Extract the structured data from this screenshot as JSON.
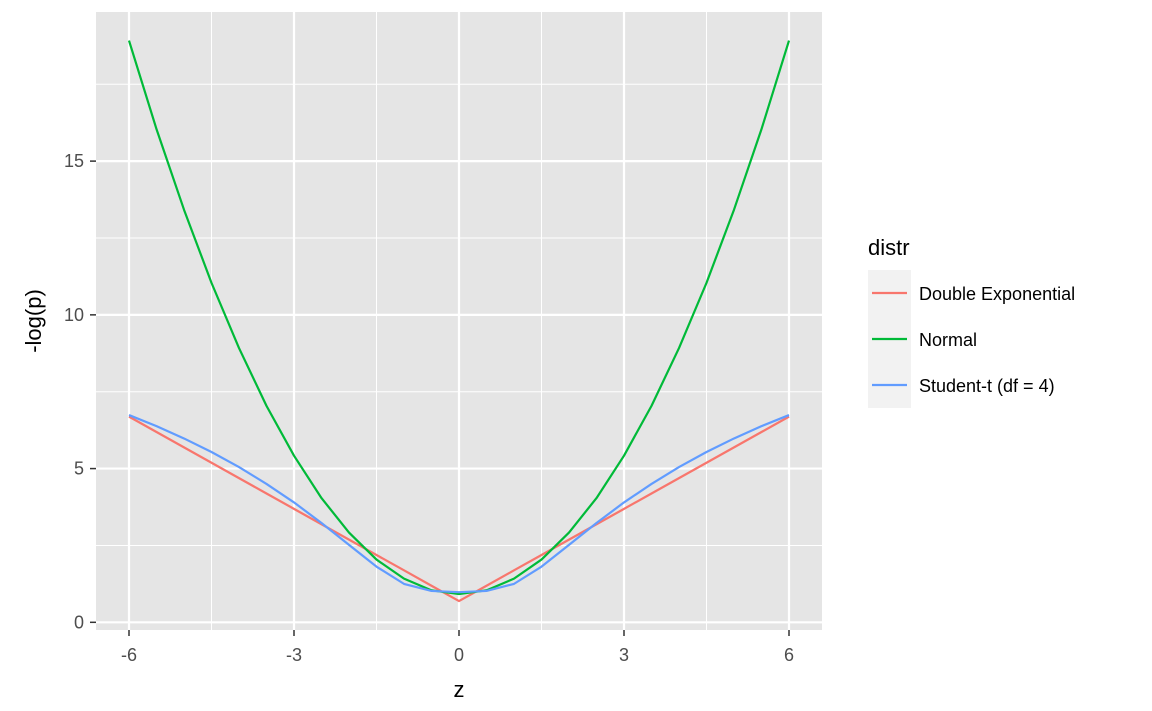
{
  "chart_data": {
    "type": "line",
    "xlabel": "z",
    "ylabel": "-log(p)",
    "xlim": [
      -6.6,
      6.6
    ],
    "ylim": [
      -0.25,
      19.85
    ],
    "xticks": [
      -6,
      -3,
      0,
      3,
      6
    ],
    "xtick_labels": [
      "-6",
      "-3",
      "0",
      "3",
      "6"
    ],
    "yticks": [
      0,
      5,
      10,
      15
    ],
    "ytick_labels": [
      "0",
      "5",
      "10",
      "15"
    ],
    "x_minor_ticks": [
      -4.5,
      -1.5,
      1.5,
      4.5
    ],
    "y_minor_ticks": [
      2.5,
      7.5,
      12.5,
      17.5
    ],
    "grid": true,
    "legend_position": "right",
    "legend_title": "distr",
    "colors": {
      "panel_background": "#e5e5e5",
      "grid": "#ffffff",
      "legend_key_background": "#f2f2f2",
      "axis_text": "#4d4d4d",
      "tick": "#333333"
    },
    "series": [
      {
        "name": "Double Exponential",
        "color": "#f8766d",
        "x": [
          -6,
          -5.5,
          -5,
          -4.5,
          -4,
          -3.5,
          -3,
          -2.5,
          -2,
          -1.5,
          -1,
          -0.5,
          0,
          0.5,
          1,
          1.5,
          2,
          2.5,
          3,
          3.5,
          4,
          4.5,
          5,
          5.5,
          6
        ],
        "y": [
          6.69,
          6.19,
          5.69,
          5.19,
          4.69,
          4.19,
          3.69,
          3.19,
          2.69,
          2.19,
          1.69,
          1.19,
          0.69,
          1.19,
          1.69,
          2.19,
          2.69,
          3.19,
          3.69,
          4.19,
          4.69,
          5.19,
          5.69,
          6.19,
          6.69
        ]
      },
      {
        "name": "Normal",
        "color": "#00ba38",
        "x": [
          -6,
          -5.5,
          -5,
          -4.5,
          -4,
          -3.5,
          -3,
          -2.5,
          -2,
          -1.5,
          -1,
          -0.5,
          0,
          0.5,
          1,
          1.5,
          2,
          2.5,
          3,
          3.5,
          4,
          4.5,
          5,
          5.5,
          6
        ],
        "y": [
          18.92,
          16.04,
          13.42,
          11.04,
          8.92,
          7.04,
          5.42,
          4.04,
          2.92,
          2.04,
          1.42,
          1.04,
          0.92,
          1.04,
          1.42,
          2.04,
          2.92,
          4.04,
          5.42,
          7.04,
          8.92,
          11.04,
          13.42,
          16.04,
          18.92
        ]
      },
      {
        "name": "Student-t (df = 4)",
        "color": "#619cff",
        "x": [
          -6,
          -5.5,
          -5,
          -4.5,
          -4,
          -3.5,
          -3,
          -2.5,
          -2,
          -1.5,
          -1,
          -0.5,
          0,
          0.5,
          1,
          1.5,
          2,
          2.5,
          3,
          3.5,
          4,
          4.5,
          5,
          5.5,
          6
        ],
        "y": [
          6.74,
          6.38,
          5.98,
          5.54,
          5.05,
          4.5,
          3.9,
          3.23,
          2.52,
          1.81,
          1.25,
          1.02,
          0.98,
          1.02,
          1.25,
          1.81,
          2.52,
          3.23,
          3.9,
          4.5,
          5.05,
          5.54,
          5.98,
          6.38,
          6.74
        ]
      }
    ]
  }
}
